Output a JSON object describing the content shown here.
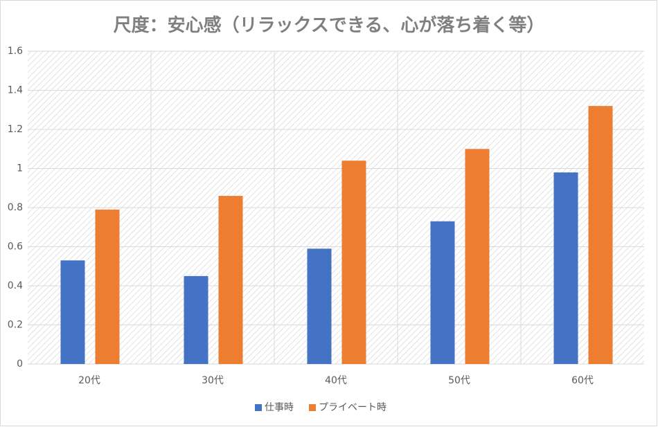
{
  "chart_data": {
    "type": "bar",
    "title": "尺度：安心感（リラックスできる、心が落ち着く等）",
    "categories": [
      "20代",
      "30代",
      "40代",
      "50代",
      "60代"
    ],
    "series": [
      {
        "name": "仕事時",
        "color": "#4472c4",
        "values": [
          0.53,
          0.45,
          0.59,
          0.73,
          0.98
        ]
      },
      {
        "name": "プライベート時",
        "color": "#ed7d31",
        "values": [
          0.79,
          0.86,
          1.04,
          1.1,
          1.32
        ]
      }
    ],
    "ylim": [
      0,
      1.6
    ],
    "yticks": [
      0,
      0.2,
      0.4,
      0.6,
      0.8,
      1,
      1.2,
      1.4,
      1.6
    ],
    "grid": true,
    "legend": "bottom"
  }
}
